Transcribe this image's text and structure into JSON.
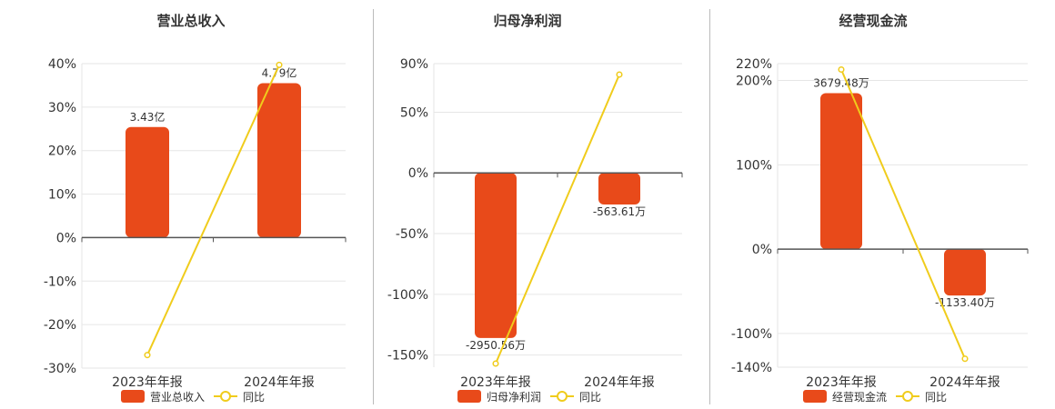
{
  "colors": {
    "bar": "#e84a1a",
    "line": "#f0cc1c",
    "axis": "#555555",
    "grid": "#e6e6e6",
    "divider": "#bbbbbb"
  },
  "chart_data": [
    {
      "type": "bar",
      "title": "营业总收入",
      "categories": [
        "2023年年报",
        "2024年年报"
      ],
      "values": [
        3.43,
        4.79
      ],
      "value_labels": [
        "3.43亿",
        "4.79亿"
      ],
      "yoy": [
        -27.0,
        39.7
      ],
      "yoy_ticks": [
        "40%",
        "30%",
        "20%",
        "10%",
        "0%",
        "-10%",
        "-20%",
        "-30%"
      ],
      "yoy_tick_values": [
        40,
        30,
        20,
        10,
        0,
        -10,
        -20,
        -30
      ],
      "ylim": [
        -30,
        40
      ],
      "legend": {
        "bar": "营业总收入",
        "line": "同比"
      }
    },
    {
      "type": "bar",
      "title": "归母净利润",
      "categories": [
        "2023年年报",
        "2024年年报"
      ],
      "values": [
        -2950.56,
        -563.61
      ],
      "value_labels": [
        "-2950.56万",
        "-563.61万"
      ],
      "yoy": [
        -157.0,
        81.0
      ],
      "yoy_ticks": [
        "90%",
        "50%",
        "0%",
        "-50%",
        "-100%",
        "-150%"
      ],
      "yoy_tick_values": [
        90,
        50,
        0,
        -50,
        -100,
        -150
      ],
      "ylim": [
        -160,
        90
      ],
      "legend": {
        "bar": "归母净利润",
        "line": "同比"
      }
    },
    {
      "type": "bar",
      "title": "经营现金流",
      "categories": [
        "2023年年报",
        "2024年年报"
      ],
      "values": [
        3679.48,
        -1133.4
      ],
      "value_labels": [
        "3679.48万",
        "-1133.40万"
      ],
      "yoy": [
        213.0,
        -130.0
      ],
      "yoy_ticks": [
        "220%",
        "200%",
        "100%",
        "0%",
        "-100%",
        "-140%"
      ],
      "yoy_tick_values": [
        220,
        200,
        100,
        0,
        -100,
        -140
      ],
      "ylim": [
        -140,
        220
      ],
      "legend": {
        "bar": "经营现金流",
        "line": "同比"
      }
    }
  ]
}
